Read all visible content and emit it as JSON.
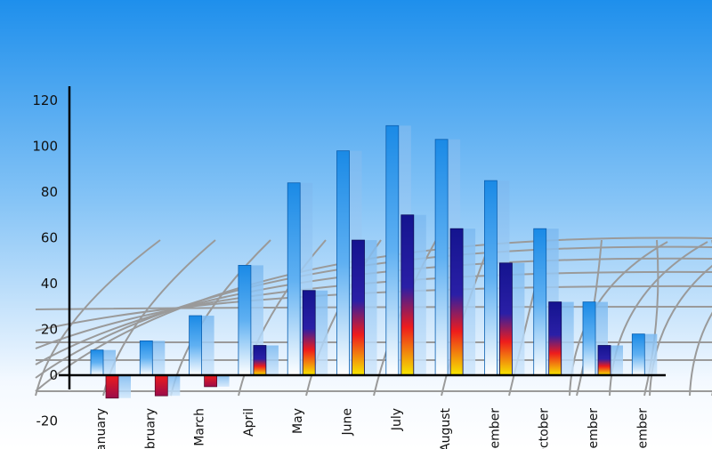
{
  "chart_data": {
    "type": "bar",
    "title": "",
    "xlabel": "",
    "ylabel": "",
    "ylim": [
      -20,
      120
    ],
    "yticks": [
      -20,
      0,
      20,
      40,
      60,
      80,
      100,
      120
    ],
    "grid": false,
    "categories": [
      "January",
      "February",
      "March",
      "April",
      "May",
      "June",
      "July",
      "August",
      "September",
      "October",
      "November",
      "December"
    ],
    "category_labels_visible": [
      "anuary",
      "ebruary",
      "March",
      "April",
      "May",
      "June",
      "July",
      "August",
      "ember",
      "October",
      "vember",
      "cember"
    ],
    "series": [
      {
        "values": [
          11,
          15,
          26,
          48,
          84,
          98,
          109,
          103,
          85,
          64,
          32,
          18
        ]
      },
      {
        "values": [
          -10,
          -9,
          -5,
          13,
          37,
          59,
          70,
          64,
          49,
          32,
          13,
          null
        ]
      }
    ],
    "colors": {
      "background_top": "#1e8fec",
      "background_bottom": "#ffffff",
      "series1_top": "#1a8ae6",
      "series1_bottom": "#ffffff",
      "series2_top": "#14148f",
      "series2_mid": "#ee1c1c",
      "series2_bottom": "#f6e800",
      "shadow": "#7bb9f0",
      "grid_decoration": "#9a9a9a",
      "axis": "#000000"
    }
  }
}
